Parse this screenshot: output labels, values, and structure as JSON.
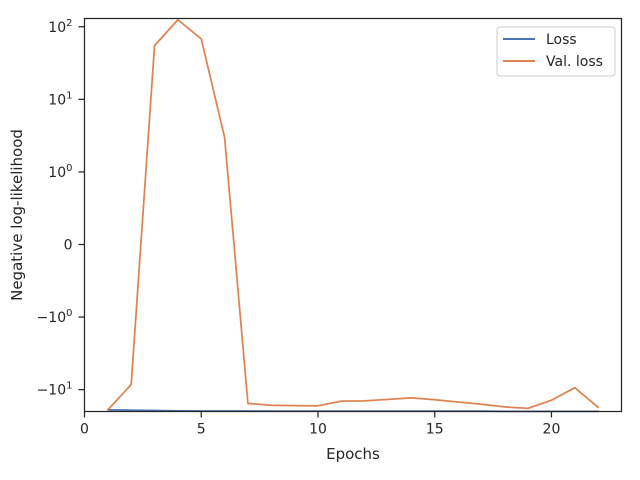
{
  "chart_data": {
    "type": "line",
    "title": "",
    "xlabel": "Epochs",
    "ylabel": "Negative log-likelihood",
    "xlim": [
      0,
      23
    ],
    "ylim": [
      -20,
      130
    ],
    "yscale": "symlog",
    "symlog_linthresh": 1,
    "grid": false,
    "legend_position": "top-right",
    "x_ticks": [
      {
        "value": 0,
        "label": "0"
      },
      {
        "value": 5,
        "label": "5"
      },
      {
        "value": 10,
        "label": "10"
      },
      {
        "value": 15,
        "label": "15"
      },
      {
        "value": 20,
        "label": "20"
      }
    ],
    "y_ticks": [
      {
        "value": 100,
        "base": "10",
        "exp": "2",
        "sign": ""
      },
      {
        "value": 10,
        "base": "10",
        "exp": "1",
        "sign": ""
      },
      {
        "value": 1,
        "base": "10",
        "exp": "0",
        "sign": ""
      },
      {
        "value": 0,
        "base": "0",
        "exp": "",
        "sign": ""
      },
      {
        "value": -1,
        "base": "10",
        "exp": "0",
        "sign": "−"
      },
      {
        "value": -10,
        "base": "10",
        "exp": "1",
        "sign": "−"
      }
    ],
    "x": [
      1,
      2,
      3,
      4,
      5,
      6,
      7,
      8,
      9,
      10,
      11,
      12,
      13,
      14,
      15,
      16,
      17,
      18,
      19,
      20,
      21,
      22
    ],
    "series": [
      {
        "name": "Loss",
        "color": "#4c72b0",
        "values": [
          -19.0,
          -19.2,
          -19.4,
          -19.6,
          -19.7,
          -19.7,
          -19.7,
          -19.8,
          -19.8,
          -19.8,
          -19.8,
          -19.8,
          -19.8,
          -19.8,
          -19.8,
          -19.8,
          -19.8,
          -19.9,
          -19.9,
          -19.9,
          -19.9,
          -19.9
        ]
      },
      {
        "name": "Val. loss",
        "color": "#dd8452",
        "values": [
          -19.0,
          -8.5,
          55,
          125,
          68,
          3.0,
          -15.5,
          -16.4,
          -16.6,
          -16.7,
          -14.4,
          -14.3,
          -13.6,
          -13.0,
          -13.8,
          -14.8,
          -15.9,
          -17.3,
          -18.1,
          -14.0,
          -9.4,
          -17.5
        ]
      }
    ]
  }
}
